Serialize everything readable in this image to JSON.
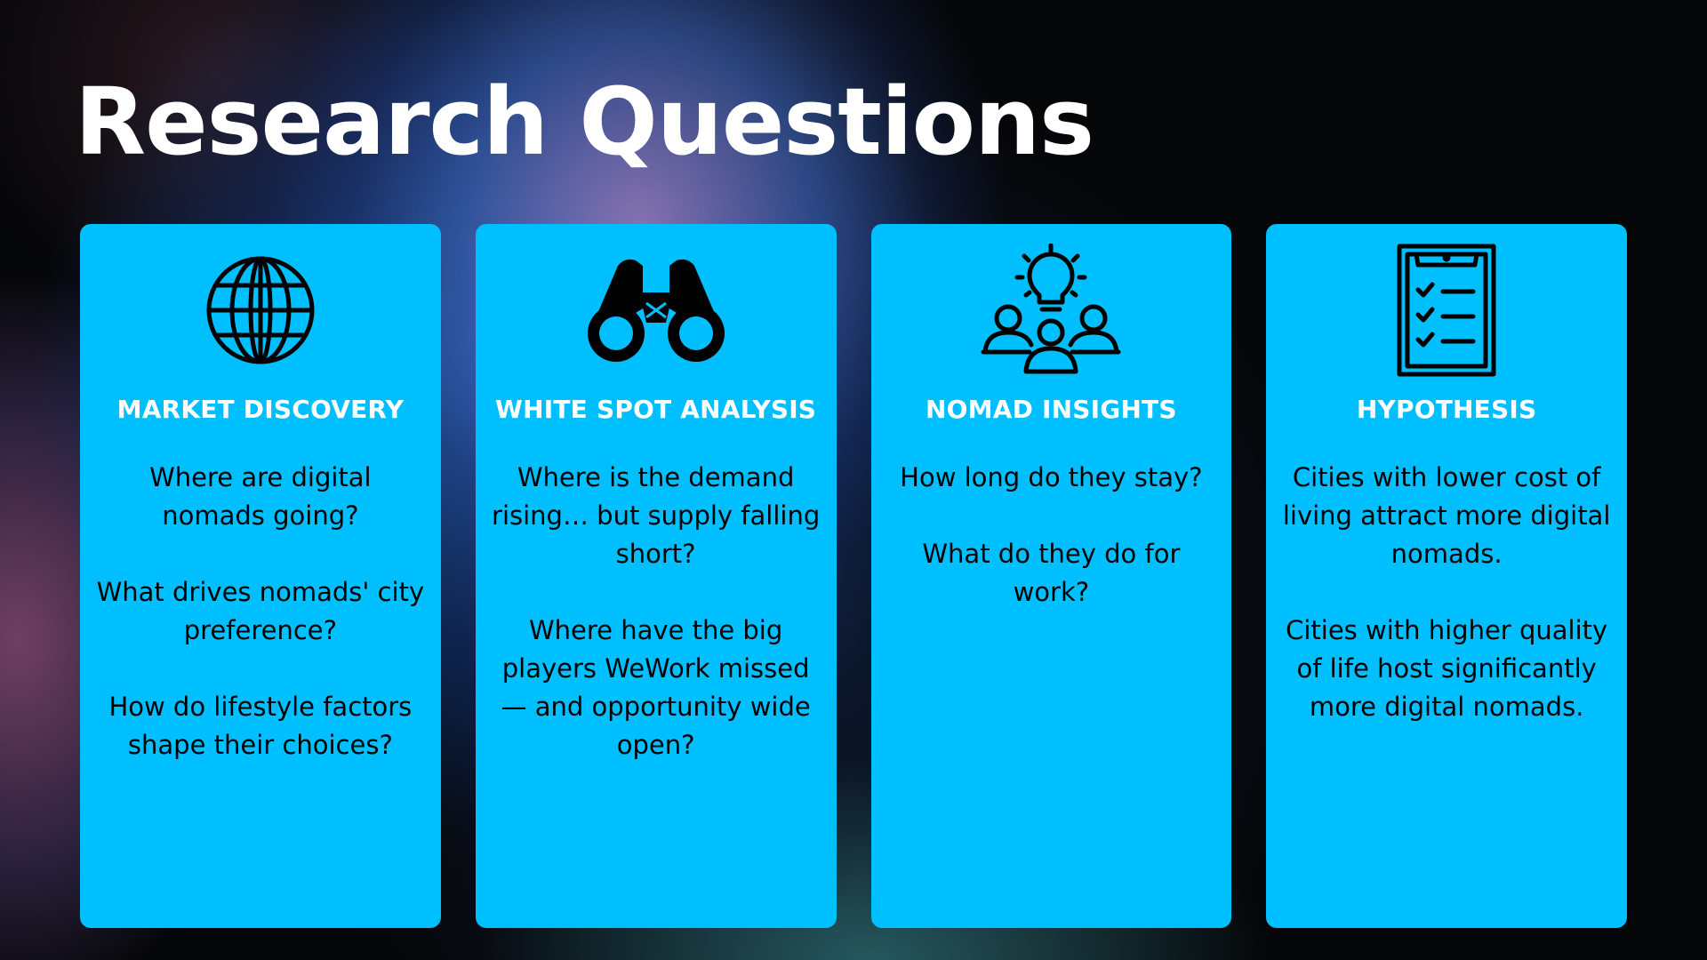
{
  "slide": {
    "title": "Research Questions"
  },
  "colors": {
    "card_background": "#00bfff",
    "heading_text": "#ffffff",
    "body_text": "#000000"
  },
  "cards": [
    {
      "icon": "globe-icon",
      "heading": "MARKET DISCOVERY",
      "items": [
        "Where are digital nomads going?",
        "What drives nomads' city preference?",
        "How do lifestyle factors shape their choices?"
      ]
    },
    {
      "icon": "binoculars-icon",
      "heading": "WHITE SPOT ANALYSIS",
      "items": [
        "Where is the demand rising… but supply falling short?",
        "Where have the big players WeWork missed — and opportunity wide open?"
      ]
    },
    {
      "icon": "people-idea-icon",
      "heading": "NOMAD INSIGHTS",
      "items": [
        "How long do they stay?",
        "What do they do for work?"
      ]
    },
    {
      "icon": "clipboard-checklist-icon",
      "heading": "HYPOTHESIS",
      "items": [
        "Cities with lower cost of living attract more digital nomads.",
        "Cities with higher quality of life host significantly more digital nomads."
      ]
    }
  ]
}
